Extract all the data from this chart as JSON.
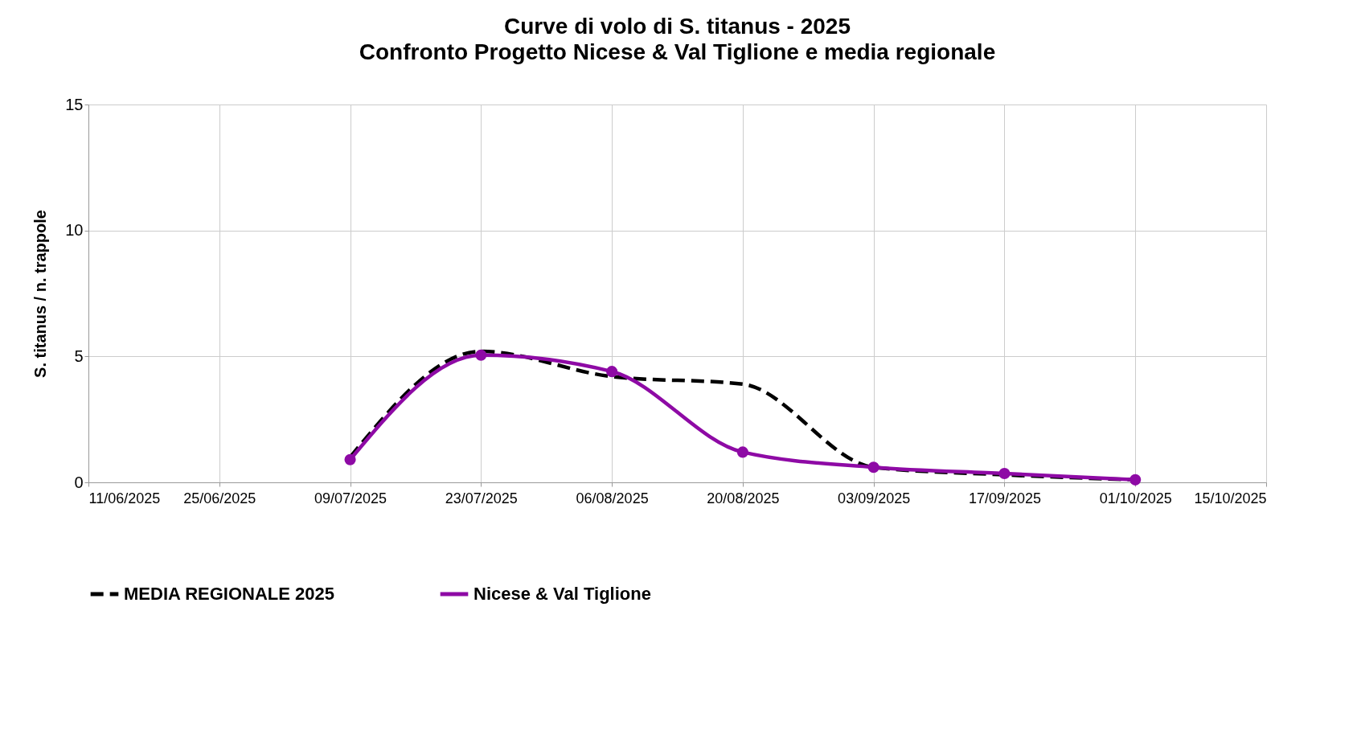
{
  "chart_data": {
    "type": "line",
    "title": "Curve di volo di S. titanus - 2025",
    "subtitle": "Confronto Progetto Nicese & Val Tiglione e media regionale",
    "ylabel": "S. titanus / n. trappole",
    "x": [
      "2025-07-09",
      "2025-07-23",
      "2025-08-06",
      "2025-08-20",
      "2025-09-03",
      "2025-09-17",
      "2025-10-01"
    ],
    "series": [
      {
        "name": "MEDIA REGIONALE 2025",
        "color": "#000000",
        "line_style": "dashed",
        "marker": "none",
        "values": [
          1.0,
          5.2,
          4.2,
          3.9,
          0.6,
          0.3,
          0.1
        ]
      },
      {
        "name": "Nicese & Val Tiglione",
        "color": "#8e0aa5",
        "line_style": "solid",
        "marker": "circle",
        "values": [
          0.9,
          5.05,
          4.4,
          1.2,
          0.6,
          0.35,
          0.1
        ]
      }
    ],
    "xlim": [
      "2025-06-11",
      "2025-10-15"
    ],
    "xticks": [
      {
        "value": "2025-06-11",
        "label": "11/06/2025"
      },
      {
        "value": "2025-06-25",
        "label": "25/06/2025"
      },
      {
        "value": "2025-07-09",
        "label": "09/07/2025"
      },
      {
        "value": "2025-07-23",
        "label": "23/07/2025"
      },
      {
        "value": "2025-08-06",
        "label": "06/08/2025"
      },
      {
        "value": "2025-08-20",
        "label": "20/08/2025"
      },
      {
        "value": "2025-09-03",
        "label": "03/09/2025"
      },
      {
        "value": "2025-09-17",
        "label": "17/09/2025"
      },
      {
        "value": "2025-10-01",
        "label": "01/10/2025"
      },
      {
        "value": "2025-10-15",
        "label": "15/10/2025"
      }
    ],
    "ylim": [
      0,
      15
    ],
    "yticks": [
      0,
      5,
      10,
      15
    ],
    "grid": true,
    "legend": "bottom"
  }
}
